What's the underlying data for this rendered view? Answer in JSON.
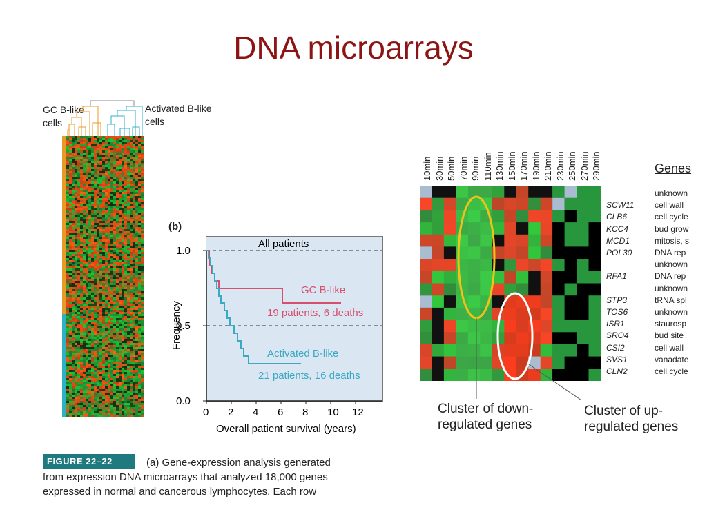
{
  "slide": {
    "title": "DNA microarrays"
  },
  "panel_a": {
    "gc_label_line1": "GC B-like",
    "gc_label_line2": "cells",
    "activated_label_line1": "Activated B-like",
    "activated_label_line2": "cells",
    "colors": {
      "gc": "#e89a2a",
      "activated": "#2fb0c5",
      "red": "#e8451e",
      "green": "#2ea84a"
    }
  },
  "panel_b": {
    "label": "(b)",
    "header": "All patients",
    "ylabel": "Frequency",
    "xlabel": "Overall patient survival (years)",
    "y_ticks": [
      "1.0",
      "0.5",
      "0.0"
    ],
    "x_ticks": [
      "0",
      "2",
      "4",
      "6",
      "8",
      "10",
      "12"
    ],
    "series": [
      {
        "name": "GC B-like",
        "note": "19 patients, 6 deaths",
        "color": "#d6506e"
      },
      {
        "name": "Activated B-like",
        "note": "21 patients, 16 deaths",
        "color": "#3aa9c2"
      }
    ]
  },
  "caption": {
    "tag": "FIGURE 22–22",
    "line1": "(a) Gene-expression analysis generated",
    "line2": "from expression DNA microarrays that analyzed 18,000 genes",
    "line3": "expressed in normal and cancerous lymphocytes. Each row"
  },
  "panel_c": {
    "time_points": [
      "10min",
      "30min",
      "50min",
      "70min",
      "90min",
      "110min",
      "130min",
      "150min",
      "170min",
      "190min",
      "210min",
      "230min",
      "250min",
      "270min",
      "290min"
    ],
    "genes_header": "Genes",
    "rows": [
      {
        "gene": "",
        "function": "unknown"
      },
      {
        "gene": "SCW11",
        "function": "cell wall"
      },
      {
        "gene": "CLB6",
        "function": "cell cycle"
      },
      {
        "gene": "KCC4",
        "function": "bud grow"
      },
      {
        "gene": "MCD1",
        "function": "mitosis, s"
      },
      {
        "gene": "POL30",
        "function": "DNA rep"
      },
      {
        "gene": "",
        "function": "unknown"
      },
      {
        "gene": "RFA1",
        "function": "DNA rep"
      },
      {
        "gene": "",
        "function": "unknown"
      },
      {
        "gene": "STP3",
        "function": "tRNA spl"
      },
      {
        "gene": "TOS6",
        "function": "unknown"
      },
      {
        "gene": "ISR1",
        "function": "staurosp"
      },
      {
        "gene": "SRO4",
        "function": "bud site"
      },
      {
        "gene": "CSI2",
        "function": "cell wall"
      },
      {
        "gene": "SVS1",
        "function": "vanadate"
      },
      {
        "gene": "CLN2",
        "function": "cell cycle"
      }
    ],
    "down_label_line1": "Cluster of down-",
    "down_label_line2": "regulated genes",
    "up_label_line1": "Cluster of up-",
    "up_label_line2": "regulated genes",
    "colors": {
      "down_ellipse": "#f2c316",
      "up_ellipse": "#ffffff"
    }
  }
}
